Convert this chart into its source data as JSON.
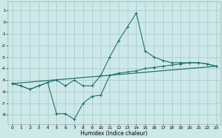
{
  "xlabel": "Humidex (Indice chaleur)",
  "xlim": [
    -0.5,
    23.5
  ],
  "ylim": [
    -8.8,
    1.8
  ],
  "yticks": [
    1,
    0,
    -1,
    -2,
    -3,
    -4,
    -5,
    -6,
    -7,
    -8
  ],
  "xticks": [
    0,
    1,
    2,
    3,
    4,
    5,
    6,
    7,
    8,
    9,
    10,
    11,
    12,
    13,
    14,
    15,
    16,
    17,
    18,
    19,
    20,
    21,
    22,
    23
  ],
  "background_color": "#cce8e8",
  "grid_color": "#aacccc",
  "line_color": "#1a6b6b",
  "line1_x": [
    0,
    1,
    2,
    3,
    4,
    5,
    6,
    7,
    8,
    9,
    10,
    11,
    12,
    13,
    14,
    15,
    16,
    17,
    18,
    19,
    20,
    21,
    22,
    23
  ],
  "line1_y": [
    -5.3,
    -5.5,
    -5.8,
    -5.5,
    -5.2,
    -7.9,
    -7.9,
    -8.4,
    -7.0,
    -6.4,
    -6.3,
    -4.6,
    -4.4,
    -4.3,
    -4.2,
    -4.0,
    -3.9,
    -3.8,
    -3.7,
    -3.6,
    -3.5,
    -3.5,
    -3.6,
    -3.8
  ],
  "line2_x": [
    0,
    1,
    2,
    3,
    4,
    5,
    6,
    7,
    8,
    9,
    10,
    11,
    12,
    13,
    14,
    15,
    16,
    17,
    18,
    19,
    20,
    21,
    22,
    23
  ],
  "line2_y": [
    -5.3,
    -5.5,
    -5.8,
    -5.5,
    -5.2,
    -5.0,
    -5.5,
    -5.0,
    -5.5,
    -5.5,
    -4.6,
    -3.0,
    -1.6,
    -0.4,
    0.8,
    -2.5,
    -3.0,
    -3.3,
    -3.5,
    -3.5,
    -3.5,
    -3.5,
    -3.6,
    -3.8
  ],
  "line3_x": [
    0,
    23
  ],
  "line3_y": [
    -5.3,
    -3.8
  ]
}
